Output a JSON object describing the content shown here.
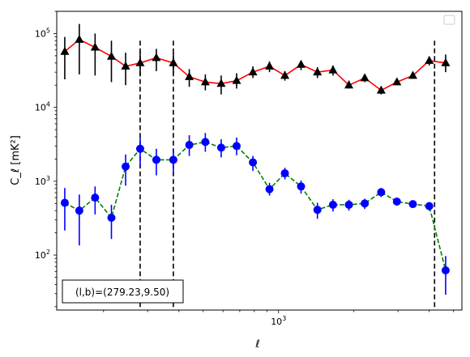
{
  "chart_data": {
    "type": "scatter",
    "xlabel": "ℓ",
    "ylabel": "C_ℓ  [mK²]",
    "xscale": "log",
    "yscale": "log",
    "xlim": [
      130,
      5400
    ],
    "ylim": [
      18,
      200000
    ],
    "x_ticks": [
      {
        "value": 1000,
        "base": "10",
        "exp": "3"
      }
    ],
    "y_ticks": [
      {
        "value": 100,
        "base": "10",
        "exp": "2"
      },
      {
        "value": 1000,
        "base": "10",
        "exp": "3"
      },
      {
        "value": 10000,
        "base": "10",
        "exp": "4"
      },
      {
        "value": 100000,
        "base": "10",
        "exp": "5"
      }
    ],
    "grid": false,
    "legend": "upper right (empty)",
    "annotation": "(l,b)=(279.23,9.50)",
    "vlines": [
      280,
      380,
      4200
    ],
    "colors": {
      "upper_line": "#ff0000",
      "upper_marker": "#000000",
      "lower_line": "#008000",
      "lower_marker": "#0000ff",
      "vline": "#000000"
    },
    "series": [
      {
        "marker": "triangle",
        "line": "solid",
        "points": [
          {
            "x": 140,
            "y": 57000,
            "lo": 24000,
            "hi": 90000
          },
          {
            "x": 160,
            "y": 83000,
            "lo": 28000,
            "hi": 135000
          },
          {
            "x": 185,
            "y": 65000,
            "lo": 27000,
            "hi": 100000
          },
          {
            "x": 215,
            "y": 49000,
            "lo": 22000,
            "hi": 80000
          },
          {
            "x": 245,
            "y": 36000,
            "lo": 20000,
            "hi": 55000
          },
          {
            "x": 280,
            "y": 40000,
            "lo": 27000,
            "hi": 58000
          },
          {
            "x": 325,
            "y": 47000,
            "lo": 31000,
            "hi": 62000
          },
          {
            "x": 380,
            "y": 40000,
            "lo": 29000,
            "hi": 55000
          },
          {
            "x": 440,
            "y": 26000,
            "lo": 19000,
            "hi": 33000
          },
          {
            "x": 510,
            "y": 22000,
            "lo": 17000,
            "hi": 28000
          },
          {
            "x": 590,
            "y": 21000,
            "lo": 15000,
            "hi": 27000
          },
          {
            "x": 680,
            "y": 23000,
            "lo": 18000,
            "hi": 29000
          },
          {
            "x": 790,
            "y": 30000,
            "lo": 25000,
            "hi": 36000
          },
          {
            "x": 920,
            "y": 36000,
            "lo": 30000,
            "hi": 42000
          },
          {
            "x": 1060,
            "y": 27000,
            "lo": 23000,
            "hi": 31000
          },
          {
            "x": 1230,
            "y": 38000,
            "lo": 32000,
            "hi": 43000
          },
          {
            "x": 1430,
            "y": 30000,
            "lo": 25000,
            "hi": 35000
          },
          {
            "x": 1650,
            "y": 32000,
            "lo": 27000,
            "hi": 37000
          },
          {
            "x": 1910,
            "y": 20000,
            "lo": 18000,
            "hi": 23000
          },
          {
            "x": 2210,
            "y": 25000,
            "lo": 22000,
            "hi": 28000
          },
          {
            "x": 2570,
            "y": 17000,
            "lo": 15000,
            "hi": 19000
          },
          {
            "x": 2970,
            "y": 22000,
            "lo": 20000,
            "hi": 24000
          },
          {
            "x": 3440,
            "y": 27000,
            "lo": 25000,
            "hi": 29000
          },
          {
            "x": 4000,
            "y": 43000,
            "lo": 37000,
            "hi": 49000
          },
          {
            "x": 4650,
            "y": 40000,
            "lo": 30000,
            "hi": 52000
          }
        ]
      },
      {
        "marker": "circle",
        "line": "dashed",
        "points": [
          {
            "x": 140,
            "y": 510,
            "lo": 215,
            "hi": 810
          },
          {
            "x": 160,
            "y": 400,
            "lo": 135,
            "hi": 660
          },
          {
            "x": 185,
            "y": 600,
            "lo": 355,
            "hi": 850
          },
          {
            "x": 215,
            "y": 320,
            "lo": 165,
            "hi": 480
          },
          {
            "x": 245,
            "y": 1580,
            "lo": 870,
            "hi": 2300
          },
          {
            "x": 280,
            "y": 2750,
            "lo": 1580,
            "hi": 3900
          },
          {
            "x": 325,
            "y": 1950,
            "lo": 1200,
            "hi": 2750
          },
          {
            "x": 380,
            "y": 1950,
            "lo": 1270,
            "hi": 2650
          },
          {
            "x": 440,
            "y": 3100,
            "lo": 2200,
            "hi": 4200
          },
          {
            "x": 510,
            "y": 3400,
            "lo": 2500,
            "hi": 4500
          },
          {
            "x": 590,
            "y": 2850,
            "lo": 2100,
            "hi": 3700
          },
          {
            "x": 680,
            "y": 3000,
            "lo": 2250,
            "hi": 3900
          },
          {
            "x": 790,
            "y": 1800,
            "lo": 1380,
            "hi": 2200
          },
          {
            "x": 920,
            "y": 780,
            "lo": 640,
            "hi": 950
          },
          {
            "x": 1060,
            "y": 1280,
            "lo": 1060,
            "hi": 1520
          },
          {
            "x": 1230,
            "y": 850,
            "lo": 680,
            "hi": 1020
          },
          {
            "x": 1430,
            "y": 410,
            "lo": 310,
            "hi": 510
          },
          {
            "x": 1650,
            "y": 480,
            "lo": 390,
            "hi": 570
          },
          {
            "x": 1910,
            "y": 480,
            "lo": 400,
            "hi": 560
          },
          {
            "x": 2210,
            "y": 500,
            "lo": 420,
            "hi": 580
          },
          {
            "x": 2570,
            "y": 710,
            "lo": 610,
            "hi": 810
          },
          {
            "x": 2970,
            "y": 530,
            "lo": 470,
            "hi": 590
          },
          {
            "x": 3440,
            "y": 490,
            "lo": 440,
            "hi": 540
          },
          {
            "x": 4000,
            "y": 460,
            "lo": 400,
            "hi": 520
          },
          {
            "x": 4650,
            "y": 62,
            "lo": 29,
            "hi": 97
          }
        ]
      }
    ]
  }
}
